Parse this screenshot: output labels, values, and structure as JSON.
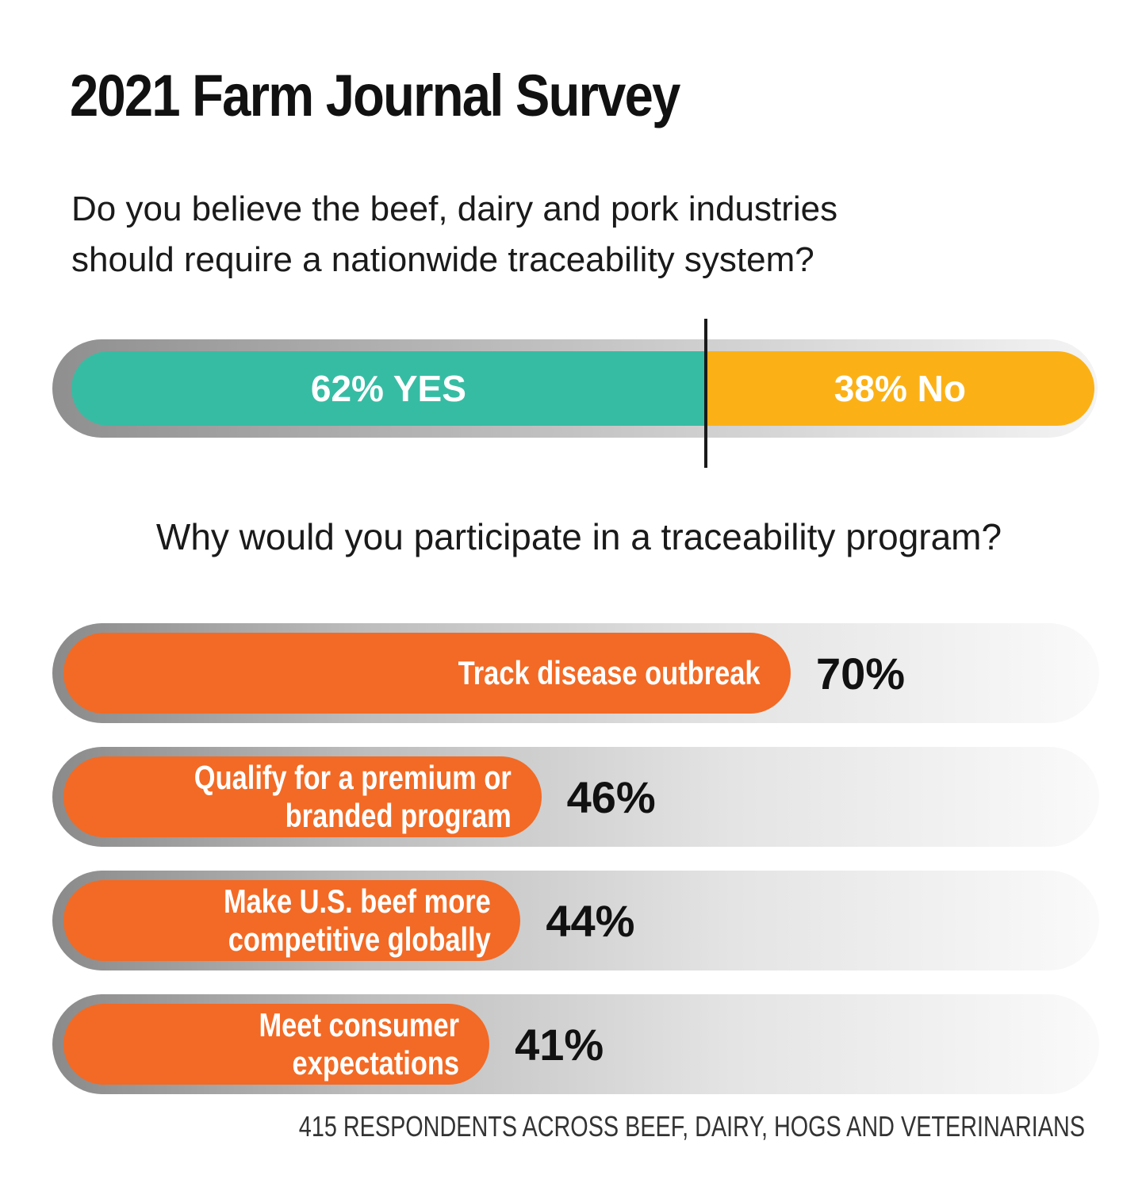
{
  "title": "2021 Farm Journal Survey",
  "colors": {
    "yes": "#37bca4",
    "no": "#fbb116",
    "bar": "#f26a25"
  },
  "chart_data": [
    {
      "type": "bar",
      "orientation": "horizontal-stacked",
      "question_lines": [
        "Do you believe the beef, dairy and pork industries",
        "should require a nationwide traceability system?"
      ],
      "segments": [
        {
          "name": "YES",
          "value": 62,
          "label": "62% YES"
        },
        {
          "name": "No",
          "value": 38,
          "label": "38% No"
        }
      ]
    },
    {
      "type": "bar",
      "orientation": "horizontal",
      "question": "Why would you participate in a traceability program?",
      "categories": [
        "Track disease outbreak",
        "Qualify for a premium or\nbranded program",
        "Make U.S. beef more\ncompetitive globally",
        "Meet consumer\nexpectations"
      ],
      "values": [
        70,
        46,
        44,
        41
      ],
      "value_labels": [
        "70%",
        "46%",
        "44%",
        "41%"
      ]
    }
  ],
  "footnote": "415 RESPONDENTS ACROSS BEEF, DAIRY, HOGS AND VETERINARIANS"
}
